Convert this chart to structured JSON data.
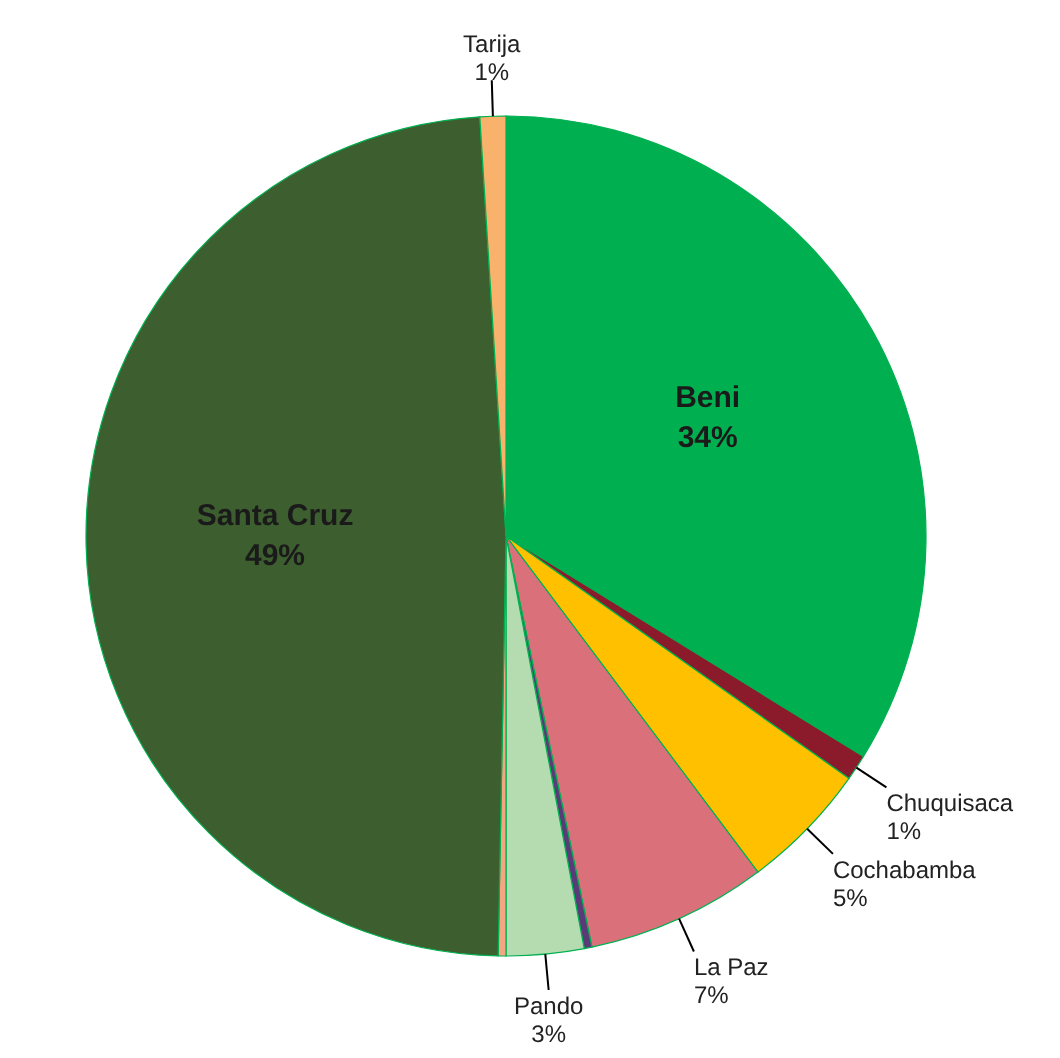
{
  "chart_data": {
    "type": "pie",
    "categories": [
      "Beni",
      "Chuquisaca",
      "Cochabamba",
      "La Paz",
      null,
      "Pando",
      null,
      "Santa Cruz",
      "Tarija"
    ],
    "values": [
      34,
      1,
      5,
      7,
      0.3,
      3,
      0.3,
      49,
      1
    ],
    "value_labels": [
      "34%",
      "1%",
      "5%",
      "7%",
      null,
      "3%",
      null,
      "49%",
      "1%"
    ],
    "colors": [
      "#00b050",
      "#8b1a2b",
      "#ffc000",
      "#d9707a",
      "#5b3a7a",
      "#b5dcb0",
      "#f4a582",
      "#3d5e2f",
      "#f9b26b"
    ],
    "legend": false
  }
}
